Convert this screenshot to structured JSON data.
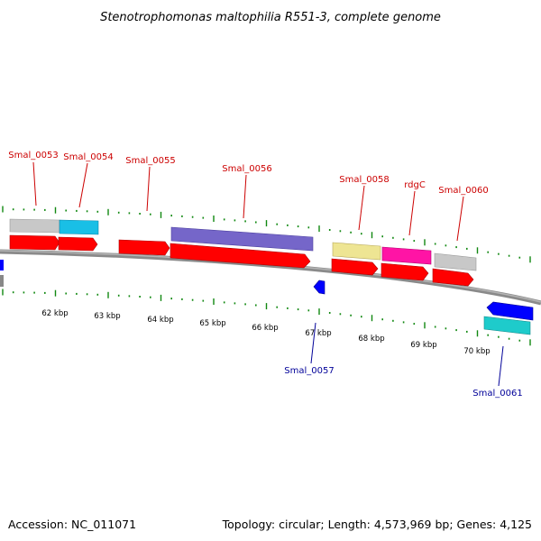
{
  "title": "Stenotrophomonas maltophilia R551-3, complete genome",
  "footer": {
    "accession": "Accession: NC_011071",
    "summary": "Topology: circular; Length: 4,573,969 bp; Genes: 4,125"
  },
  "kbp_ticks": [
    "62 kbp",
    "63 kbp",
    "64 kbp",
    "65 kbp",
    "66 kbp",
    "67 kbp",
    "68 kbp",
    "69 kbp",
    "70 kbp"
  ],
  "genes_top": [
    {
      "name": "Smal_0053",
      "color": "#c8c8c8"
    },
    {
      "name": "Smal_0054",
      "color": "#19bfe6"
    },
    {
      "name": "Smal_0055",
      "color": "#ff0000"
    },
    {
      "name": "Smal_0056",
      "color": "#7566c9"
    },
    {
      "name": "Smal_0058",
      "color": "#eee593"
    },
    {
      "name": "rdgC",
      "color": "#ff14a5"
    },
    {
      "name": "Smal_0060",
      "color": "#c8c8c8"
    }
  ],
  "genes_bottom": [
    {
      "name": "Smal_0057",
      "color": "#0000ff"
    },
    {
      "name": "Smal_0061",
      "color": "#1ecbcb"
    }
  ],
  "colors": {
    "cds": "#ff0000",
    "reverse_cds": "#0000ff",
    "backbone": "#8a8a8a",
    "tick": "#118811"
  }
}
